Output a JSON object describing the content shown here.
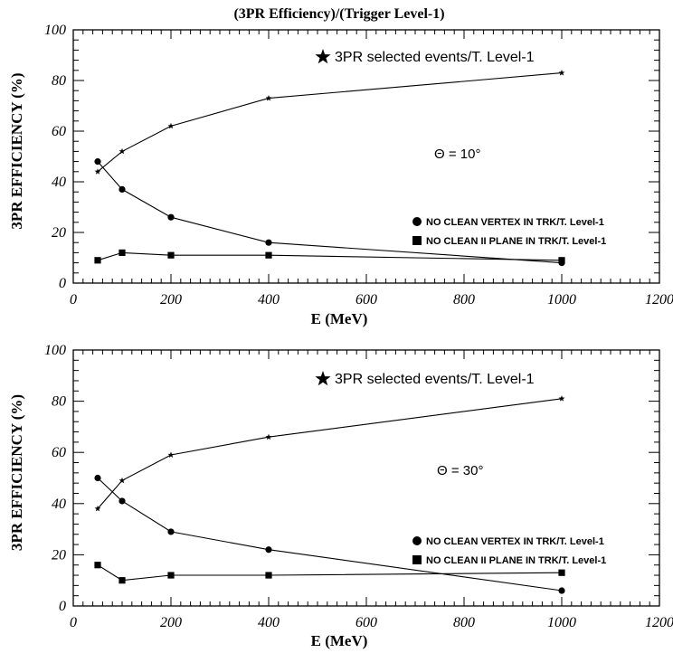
{
  "figure_title": "(3PR Efficiency)/(Trigger Level-1)",
  "chart_data": [
    {
      "type": "line",
      "title": "(3PR Efficiency)/(Trigger Level-1)",
      "xlabel": "E (MeV)",
      "ylabel": "3PR EFFICIENCY (%)",
      "xlim": [
        0,
        1200
      ],
      "ylim": [
        0,
        100
      ],
      "xticks": [
        "0",
        "200",
        "400",
        "600",
        "800",
        "1000",
        "1200"
      ],
      "yticks": [
        "0",
        "20",
        "40",
        "60",
        "80",
        "100"
      ],
      "annotation": "Θ = 10°",
      "grid": false,
      "series": [
        {
          "name": "3PR selected events/T. Level-1",
          "marker": "star",
          "x": [
            50,
            100,
            200,
            400,
            1000
          ],
          "values": [
            44,
            52,
            62,
            73,
            83
          ]
        },
        {
          "name": "NO CLEAN VERTEX IN TRK/T. Level-1",
          "marker": "circle",
          "x": [
            50,
            100,
            200,
            400,
            1000
          ],
          "values": [
            48,
            37,
            26,
            16,
            8
          ]
        },
        {
          "name": "NO CLEAN II PLANE IN TRK/T. Level-1",
          "marker": "square",
          "x": [
            50,
            100,
            200,
            400,
            1000
          ],
          "values": [
            9,
            12,
            11,
            11,
            9
          ]
        }
      ]
    },
    {
      "type": "line",
      "title": "",
      "xlabel": "E (MeV)",
      "ylabel": "3PR EFFICIENCY (%)",
      "xlim": [
        0,
        1200
      ],
      "ylim": [
        0,
        100
      ],
      "xticks": [
        "0",
        "200",
        "400",
        "600",
        "800",
        "1000",
        "1200"
      ],
      "yticks": [
        "0",
        "20",
        "40",
        "60",
        "80",
        "100"
      ],
      "annotation": "Θ = 30°",
      "grid": false,
      "series": [
        {
          "name": "3PR selected events/T. Level-1",
          "marker": "star",
          "x": [
            50,
            100,
            200,
            400,
            1000
          ],
          "values": [
            38,
            49,
            59,
            66,
            81
          ]
        },
        {
          "name": "NO CLEAN VERTEX IN TRK/T. Level-1",
          "marker": "circle",
          "x": [
            50,
            100,
            200,
            400,
            1000
          ],
          "values": [
            50,
            41,
            29,
            22,
            6
          ]
        },
        {
          "name": "NO CLEAN II PLANE IN TRK/T. Level-1",
          "marker": "square",
          "x": [
            50,
            100,
            200,
            400,
            1000
          ],
          "values": [
            16,
            10,
            12,
            12,
            13
          ]
        }
      ]
    }
  ]
}
